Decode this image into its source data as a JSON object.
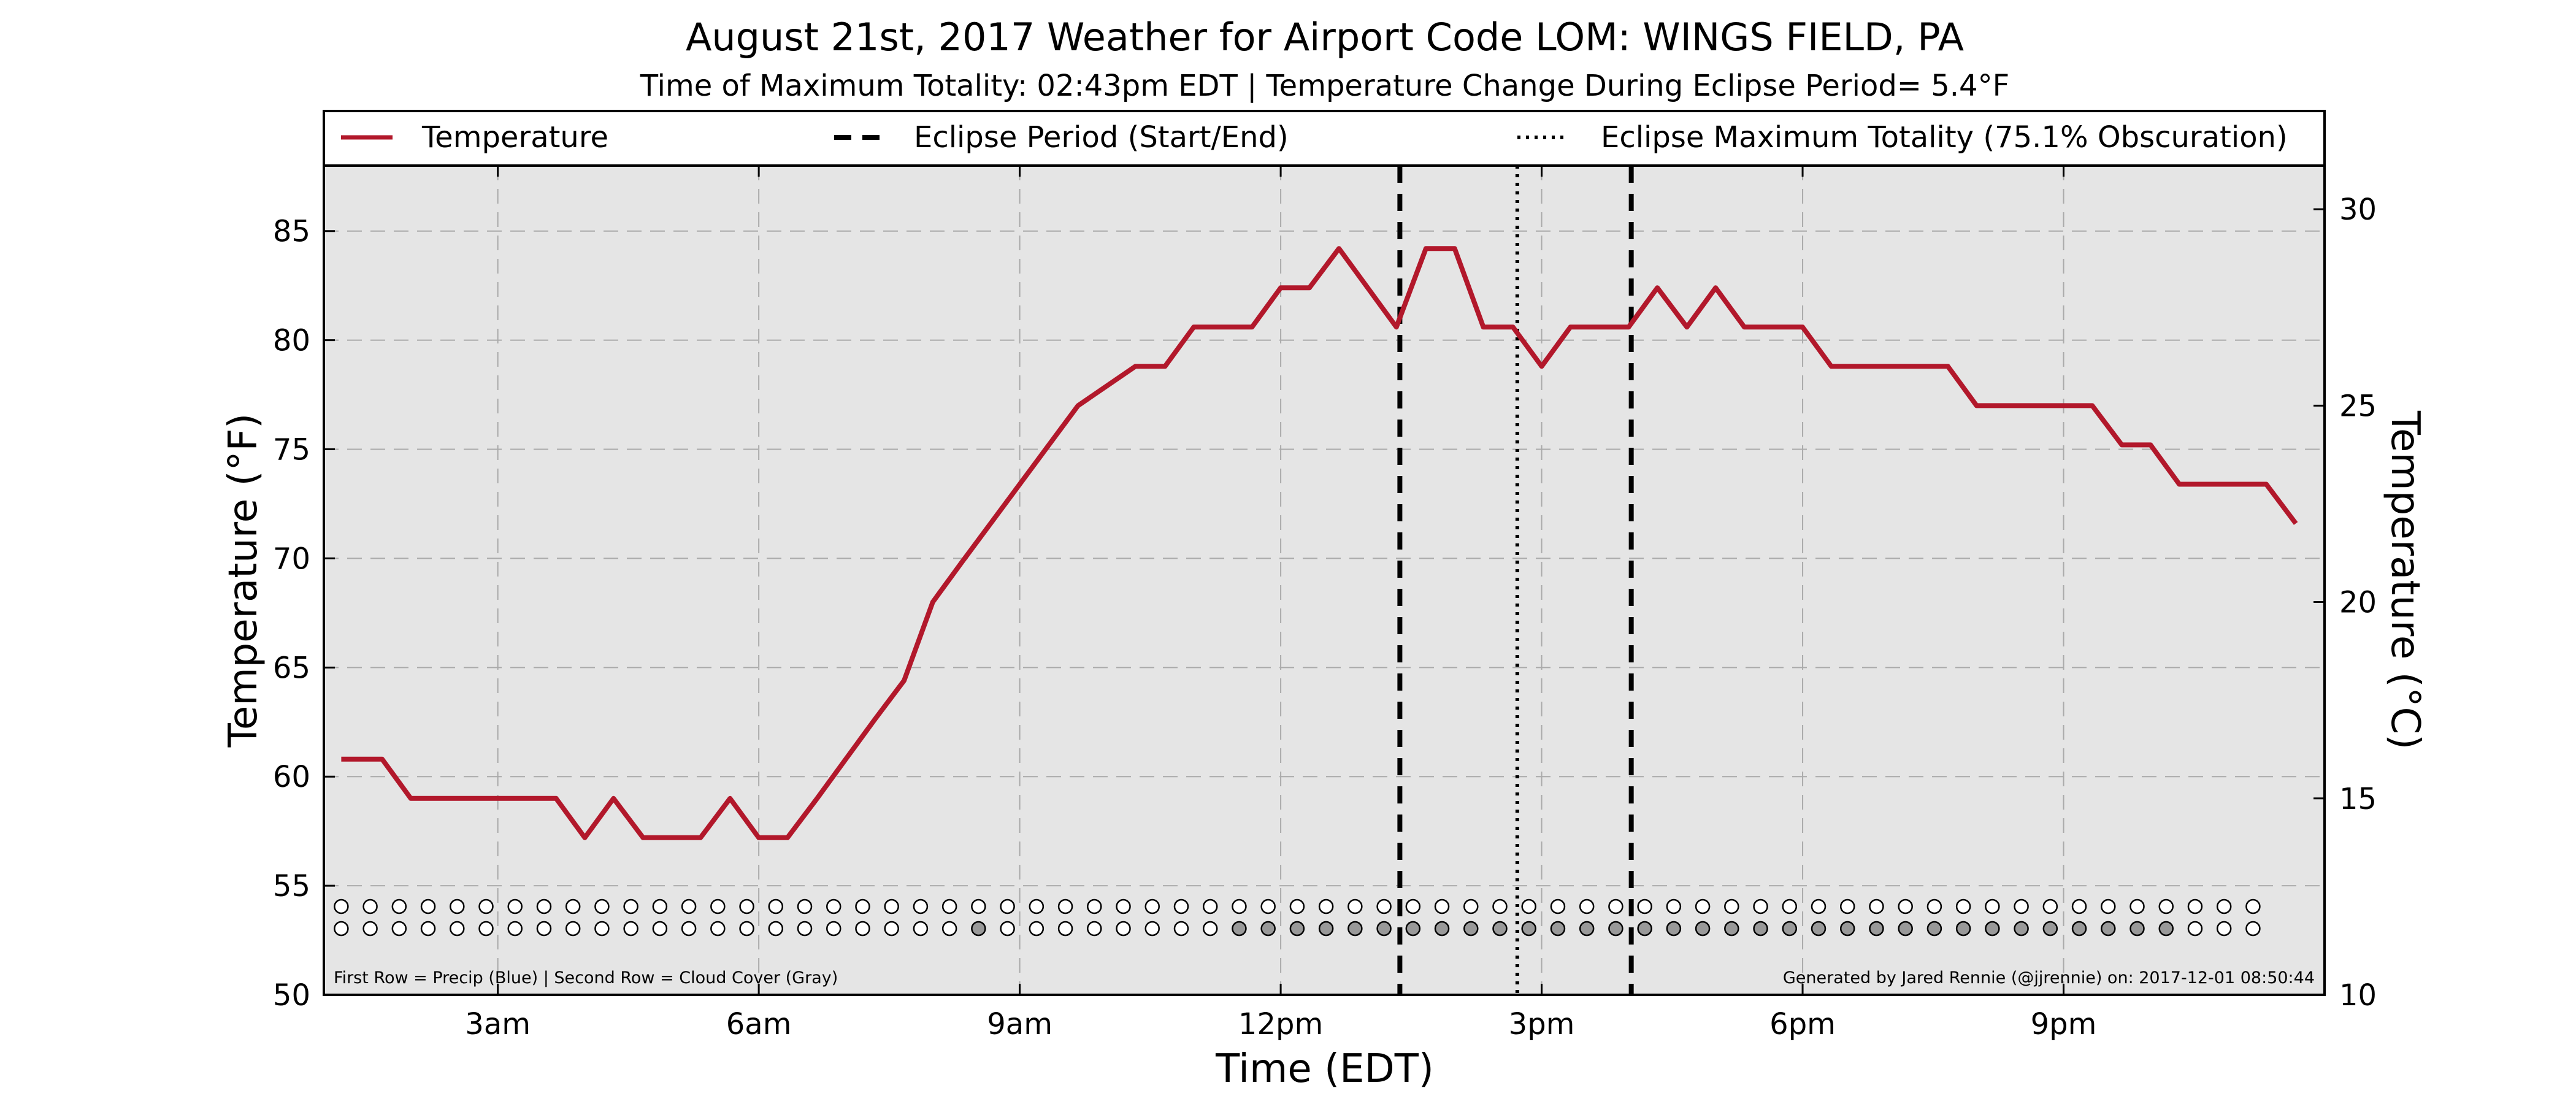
{
  "chart_data": {
    "type": "line",
    "title": "August 21st, 2017 Weather for Airport Code LOM: WINGS FIELD, PA",
    "subtitle": "Time of Maximum Totality: 02:43pm EDT | Temperature Change During Eclipse Period= 5.4°F",
    "xlabel": "Time (EDT)",
    "ylabel": "Temperature (°F)",
    "ylabel_right": "Temperature (°C)",
    "xlim": [
      1,
      24
    ],
    "ylim": [
      50,
      88
    ],
    "ylim_right": [
      10,
      31.11
    ],
    "x_ticks": [
      3,
      6,
      9,
      12,
      15,
      18,
      21
    ],
    "x_tick_labels": [
      "3am",
      "6am",
      "9am",
      "12pm",
      "3pm",
      "6pm",
      "9pm"
    ],
    "y_ticks": [
      50,
      55,
      60,
      65,
      70,
      75,
      80,
      85
    ],
    "y_tick_labels": [
      "50",
      "55",
      "60",
      "65",
      "70",
      "75",
      "80",
      "85"
    ],
    "y_ticks_right": [
      10,
      15,
      20,
      25,
      30
    ],
    "y_tick_labels_right": [
      "10",
      "15",
      "20",
      "25",
      "30"
    ],
    "grid": true,
    "legend_position": "top",
    "legend": [
      {
        "label": "Temperature",
        "style": "solid"
      },
      {
        "label": "Eclipse Period (Start/End)",
        "style": "dashed"
      },
      {
        "label": "Eclipse Maximum Totality (75.1% Obscuration)",
        "style": "dotted"
      }
    ],
    "series": [
      {
        "name": "Temperature",
        "color": "#b2182b",
        "x": [
          1.2,
          1.33,
          1.67,
          2.0,
          2.33,
          2.67,
          3.0,
          3.33,
          3.67,
          4.0,
          4.33,
          4.67,
          5.0,
          5.33,
          5.67,
          6.0,
          6.33,
          6.67,
          7.0,
          7.33,
          7.67,
          8.0,
          8.33,
          9.0,
          9.67,
          10.33,
          10.67,
          11.0,
          11.33,
          11.67,
          12.0,
          12.33,
          12.67,
          13.0,
          13.33,
          13.67,
          14.0,
          14.33,
          14.67,
          15.0,
          15.33,
          15.67,
          16.0,
          16.33,
          16.67,
          17.0,
          17.33,
          17.67,
          18.0,
          18.33,
          18.67,
          19.0,
          19.33,
          19.67,
          20.0,
          20.33,
          20.67,
          21.0,
          21.33,
          21.67,
          22.0,
          22.33,
          22.67,
          23.0,
          23.33,
          23.67
        ],
        "y": [
          60.8,
          60.8,
          60.8,
          59.0,
          59.0,
          59.0,
          59.0,
          59.0,
          59.0,
          57.2,
          59.0,
          57.2,
          57.2,
          57.2,
          59.0,
          57.2,
          57.2,
          59.0,
          60.8,
          62.6,
          64.4,
          68.0,
          69.8,
          73.4,
          77.0,
          78.8,
          78.8,
          80.6,
          80.6,
          80.6,
          82.4,
          82.4,
          84.2,
          82.4,
          80.6,
          84.2,
          84.2,
          80.6,
          80.6,
          78.8,
          80.6,
          80.6,
          80.6,
          82.4,
          80.6,
          82.4,
          80.6,
          80.6,
          80.6,
          78.8,
          78.8,
          78.8,
          78.8,
          78.8,
          77.0,
          77.0,
          77.0,
          77.0,
          77.0,
          75.2,
          75.2,
          73.4,
          73.4,
          73.4,
          73.4,
          71.6
        ]
      }
    ],
    "eclipse_start": 13.37,
    "eclipse_max": 14.72,
    "eclipse_end": 16.03,
    "dot_rows": {
      "x_start": 1.2,
      "x_step": 0.333,
      "count": 67,
      "precip_filled_indices": [],
      "cloud_filled_indices": [
        22,
        31,
        32,
        33,
        34,
        35,
        36,
        37,
        38,
        39,
        40,
        41,
        42,
        43,
        44,
        45,
        46,
        47,
        48,
        49,
        50,
        51,
        52,
        53,
        54,
        55,
        56,
        57,
        58,
        59,
        60,
        61,
        62,
        63
      ],
      "empty_color": "#ffffff",
      "cloud_color": "#999999",
      "precip_color": "#3a78c9"
    },
    "footnote_left": "First Row = Precip (Blue) | Second Row = Cloud Cover (Gray)",
    "footnote_right": "Generated by Jared Rennie (@jjrennie) on: 2017-12-01 08:50:44",
    "colors": {
      "plot_background": "#e5e5e5",
      "grid": "#aaaaaa",
      "temperature_line": "#b2182b",
      "eclipse_lines": "#000000"
    }
  }
}
